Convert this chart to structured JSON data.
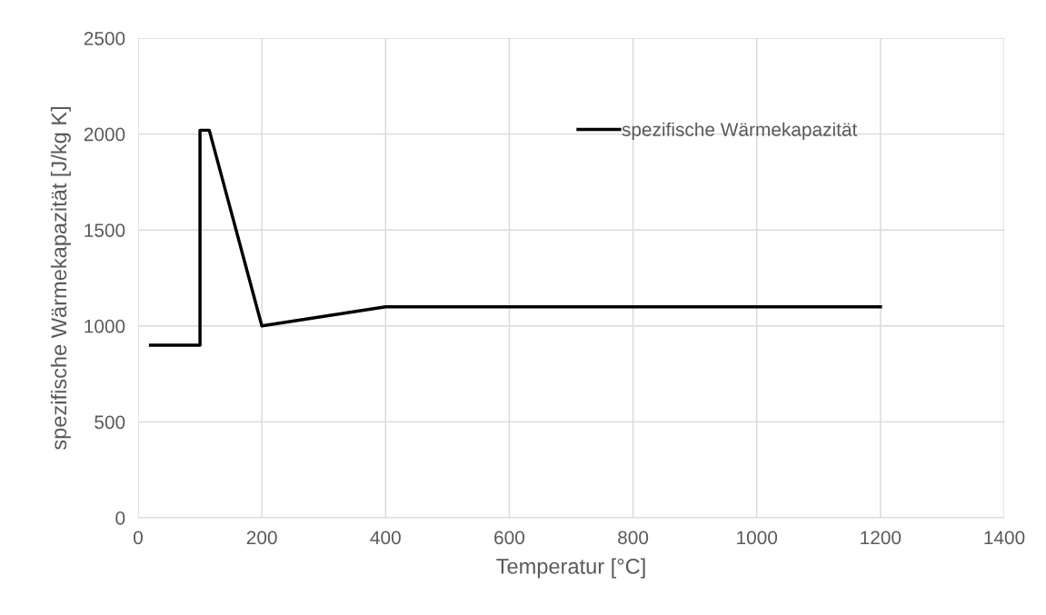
{
  "chart_data": {
    "type": "line",
    "xlabel": "Temperatur [°C]",
    "ylabel": "spezifische Wärmekapazität [J/kg K]",
    "x": [
      20,
      100,
      100,
      115,
      200,
      400,
      1200
    ],
    "series": [
      {
        "name": "spezifische Wärmekapazität",
        "color": "#000000",
        "values": [
          900,
          900,
          2020,
          2020,
          1000,
          1100,
          1100
        ]
      }
    ],
    "xlim": [
      0,
      1400
    ],
    "xticks": [
      0,
      200,
      400,
      600,
      800,
      1000,
      1200,
      1400
    ],
    "ylim": [
      0,
      2500
    ],
    "yticks": [
      0,
      500,
      1000,
      1500,
      2000,
      2500
    ],
    "grid": true,
    "legend": "top right",
    "marker": "none",
    "line_style": "solid"
  }
}
